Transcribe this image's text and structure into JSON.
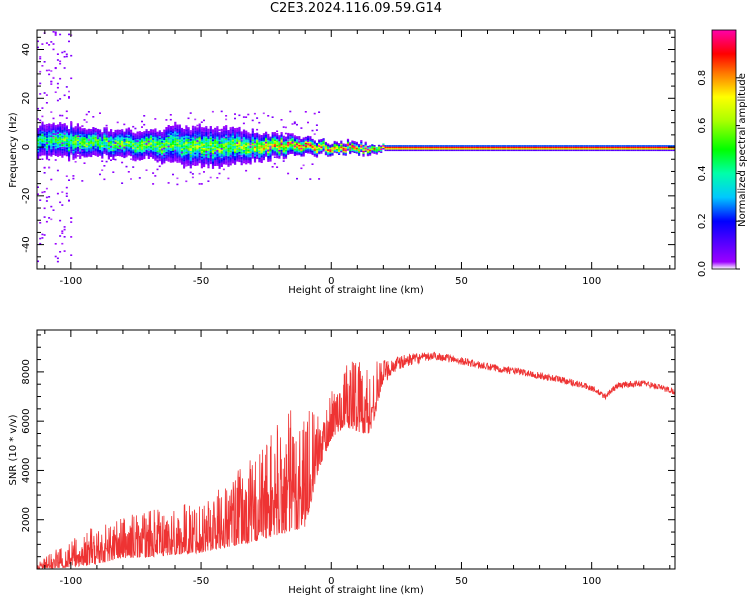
{
  "title": "C2E3.2024.116.09.59.G14",
  "chart_data": [
    {
      "type": "heatmap",
      "xlabel": "Height of straight line (km)",
      "ylabel": "Frequency (Hz)",
      "xlim": [
        -113,
        132
      ],
      "ylim": [
        -50,
        48
      ],
      "xticks": [
        -100,
        -50,
        0,
        50,
        100
      ],
      "yticks": [
        -40,
        -20,
        0,
        20,
        40
      ],
      "grid": false,
      "colorbar": {
        "label": "Normalized spectral amplitude",
        "ticks": [
          0.0,
          0.2,
          0.4,
          0.6,
          0.8
        ],
        "range": [
          0,
          1
        ],
        "colormap": "hsv-like (violet → blue → cyan → green → yellow → red → magenta)"
      },
      "ridge": {
        "x": [
          -110,
          -100,
          -90,
          -80,
          -70,
          -60,
          -50,
          -40,
          -30,
          -20,
          -10,
          0,
          10,
          20,
          50,
          100,
          132
        ],
        "center_hz": [
          3,
          2.5,
          2,
          1.5,
          1,
          1,
          0.5,
          0.5,
          0.5,
          1,
          0.5,
          0,
          0,
          0,
          0,
          0,
          0
        ],
        "spread_hz": [
          6,
          6,
          5,
          5,
          5,
          7,
          7,
          7,
          5,
          4,
          3,
          2,
          2,
          1,
          1,
          1,
          1
        ],
        "peak_amplitude": [
          0.45,
          0.55,
          0.55,
          0.55,
          0.6,
          0.55,
          0.6,
          0.55,
          0.7,
          0.8,
          0.85,
          0.9,
          0.95,
          0.97,
          0.98,
          0.98,
          0.98
        ]
      }
    },
    {
      "type": "line",
      "xlabel": "Height of straight line (km)",
      "ylabel": "SNR (10 * v/v)",
      "xlim": [
        -113,
        132
      ],
      "ylim": [
        0,
        9700
      ],
      "xticks": [
        -100,
        -50,
        0,
        50,
        100
      ],
      "yticks": [
        2000,
        4000,
        6000,
        8000
      ],
      "grid": false,
      "color": "#ee3333",
      "series": [
        {
          "x": [
            -113,
            -100,
            -90,
            -80,
            -70,
            -60,
            -50,
            -40,
            -30,
            -20,
            -15,
            -10,
            -5,
            0,
            5,
            10,
            15,
            20,
            25,
            30,
            40,
            50,
            60,
            70,
            80,
            90,
            100,
            105,
            110,
            120,
            132
          ],
          "y": [
            100,
            500,
            800,
            1100,
            1200,
            1300,
            1500,
            1900,
            2400,
            3200,
            3400,
            3700,
            4800,
            6000,
            6700,
            6900,
            6500,
            8000,
            8300,
            8500,
            8650,
            8450,
            8200,
            8050,
            7850,
            7650,
            7350,
            7000,
            7450,
            7550,
            7200
          ],
          "noise": [
            200,
            700,
            1000,
            1100,
            1200,
            1200,
            1400,
            1700,
            2200,
            3000,
            3200,
            3300,
            1400,
            1200,
            1500,
            2200,
            1800,
            600,
            400,
            300,
            200,
            200,
            200,
            180,
            180,
            180,
            160,
            160,
            160,
            160,
            160
          ]
        }
      ]
    }
  ]
}
